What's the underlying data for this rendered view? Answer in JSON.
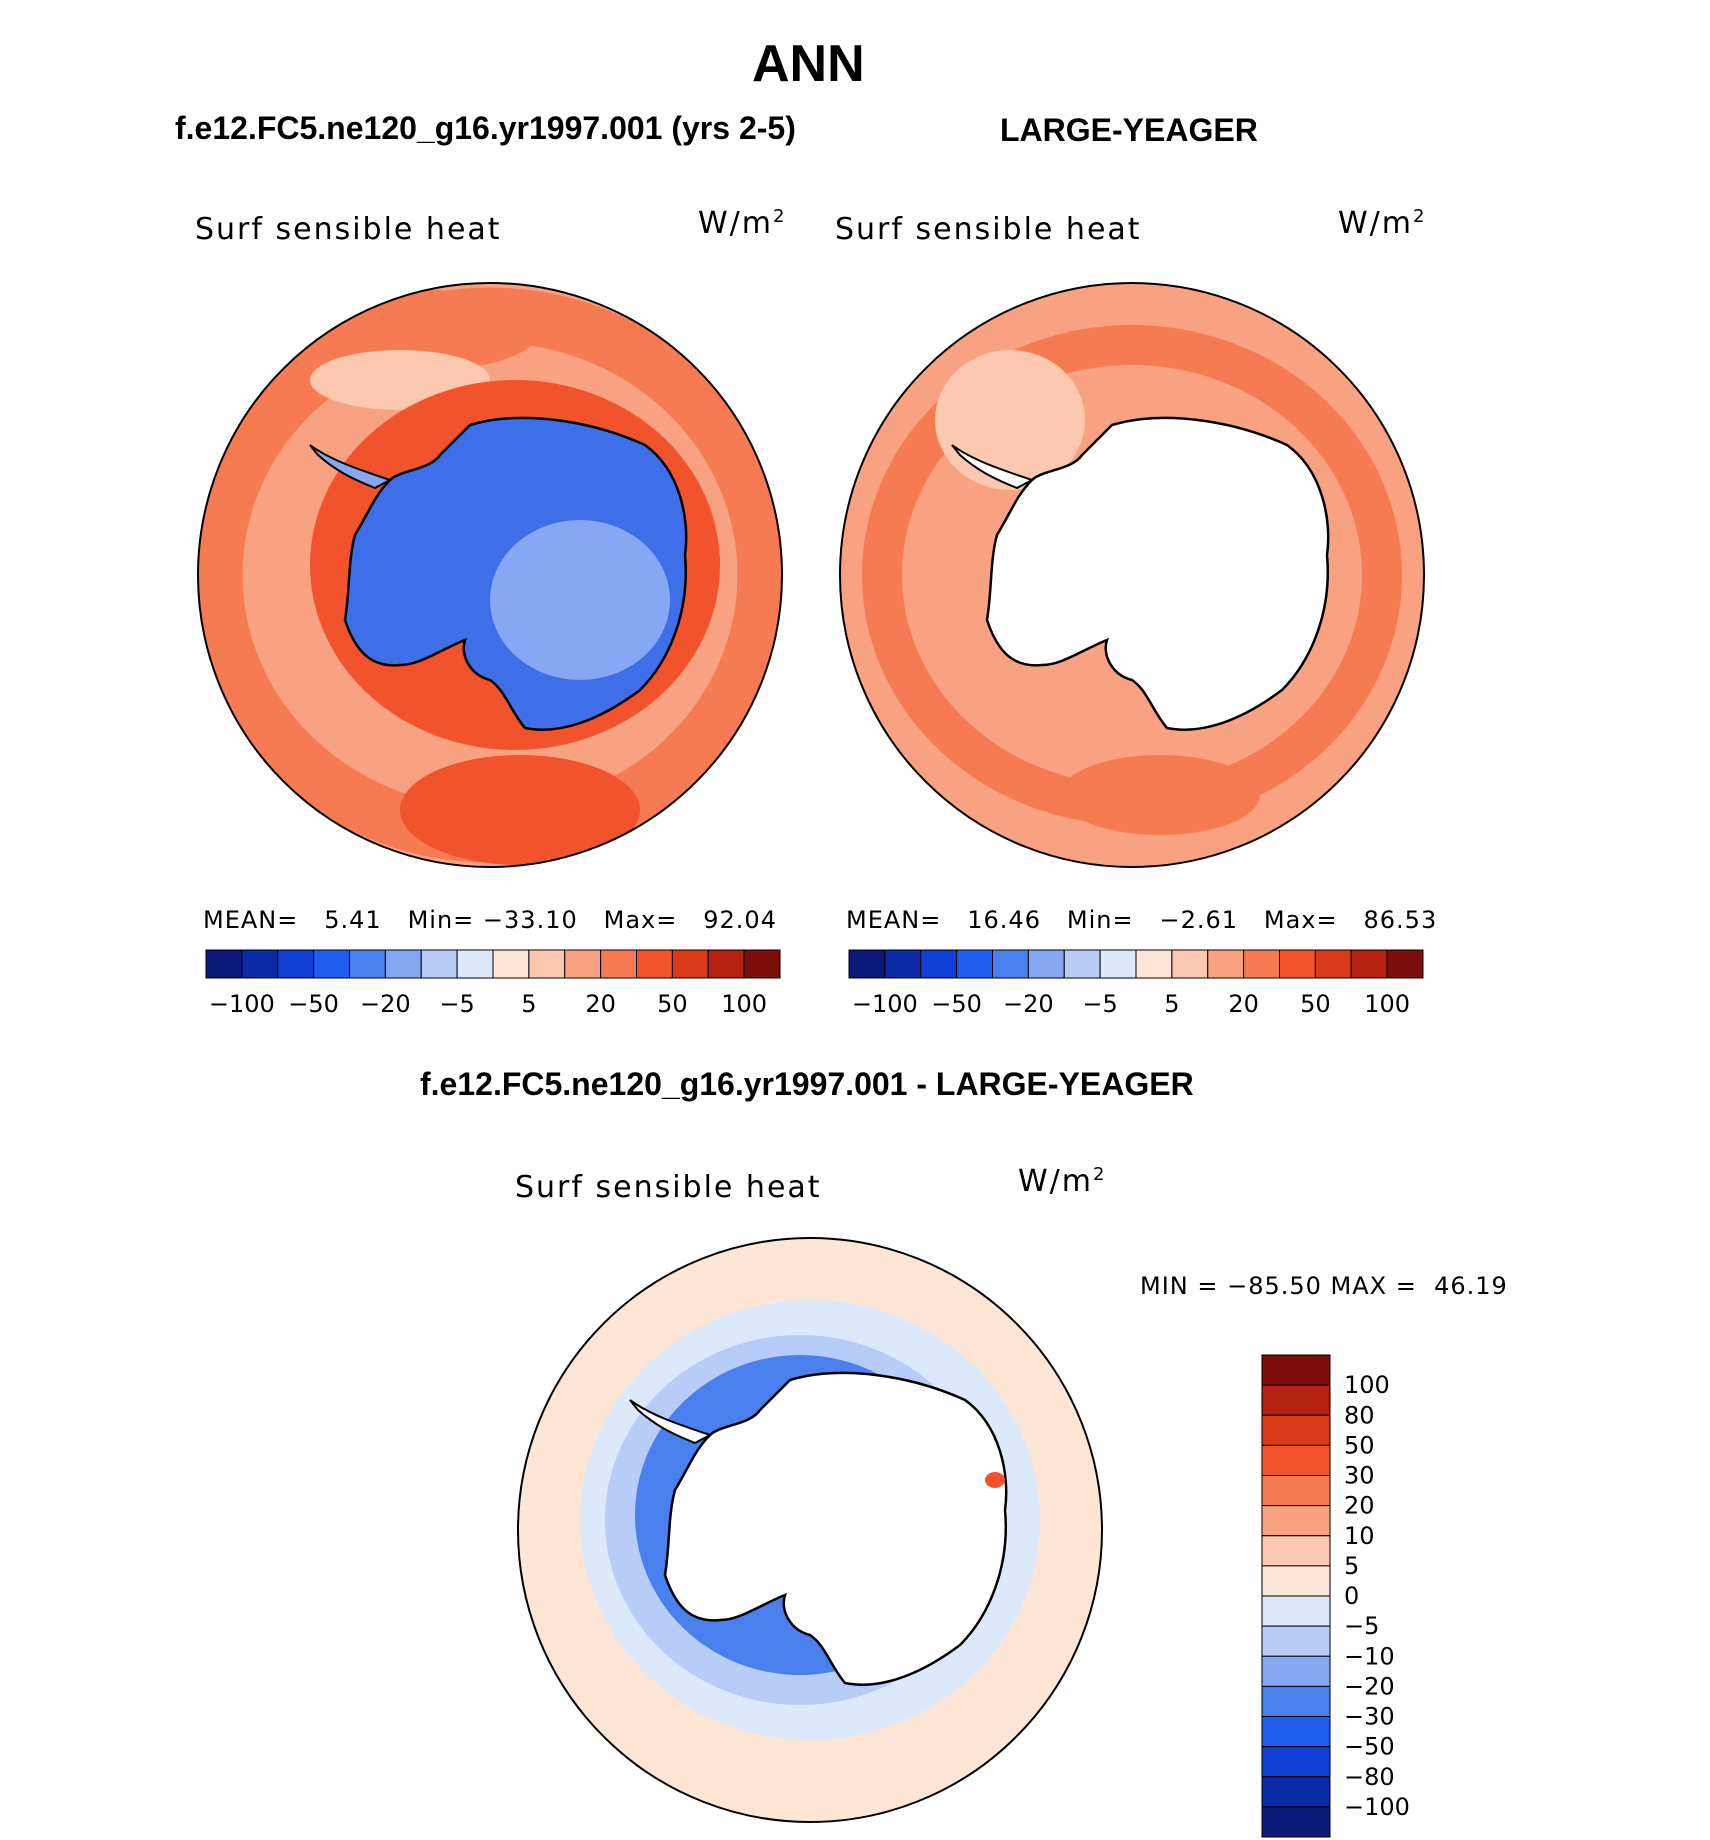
{
  "main_title": "ANN",
  "panels": [
    {
      "case": "f.e12.FC5.ne120_g16.yr1997.001 (yrs 2-5)",
      "field": "Surf sensible heat",
      "units_base": "W/m",
      "units_exp": "2",
      "stats": {
        "mean_label": "MEAN=",
        "mean": "5.41",
        "min_label": "Min=",
        "min": "−33.10",
        "max_label": "Max=",
        "max": "92.04"
      }
    },
    {
      "case": "LARGE-YEAGER",
      "field": "Surf sensible heat",
      "units_base": "W/m",
      "units_exp": "2",
      "stats": {
        "mean_label": "MEAN=",
        "mean": "16.46",
        "min_label": "Min=",
        "min": "−2.61",
        "max_label": "Max=",
        "max": "86.53"
      }
    }
  ],
  "diff": {
    "case": "f.e12.FC5.ne120_g16.yr1997.001 - LARGE-YEAGER",
    "field": "Surf sensible heat",
    "units_base": "W/m",
    "units_exp": "2",
    "minmax": "MIN = −85.50 MAX =  46.19"
  },
  "top_colorbar": {
    "colors": [
      "#0b1a7a",
      "#0a2aa6",
      "#0f3fd4",
      "#1f5ff0",
      "#4a7fee",
      "#86a8f4",
      "#b7cdf8",
      "#dce9fb",
      "#fde6d6",
      "#fcc8b0",
      "#f8a282",
      "#f67a52",
      "#f1532d",
      "#d93a17",
      "#b52110",
      "#7d0d08"
    ],
    "labels": [
      "−100",
      "−50",
      "−20",
      "−5",
      "5",
      "20",
      "50",
      "100"
    ]
  },
  "diff_colorbar": {
    "colors": [
      "#7d0d08",
      "#b52110",
      "#d93a17",
      "#f1532d",
      "#f67a52",
      "#f8a282",
      "#fcc8b0",
      "#fde6d6",
      "#dce9fb",
      "#b7cdf8",
      "#86a8f4",
      "#4a7fee",
      "#1f5ff0",
      "#0f3fd4",
      "#0a2aa6",
      "#0b1a7a"
    ],
    "labels": [
      "100",
      "80",
      "50",
      "30",
      "20",
      "10",
      "5",
      "0",
      "−5",
      "−10",
      "−20",
      "−30",
      "−50",
      "−80",
      "−100"
    ]
  },
  "map_colors": {
    "ocean_warm": "#f8a282",
    "ocean_pale": "#fcc8b0",
    "ocean_hot": "#f1532d",
    "ice_blue": "#4a7fee",
    "ice_light": "#86a8f4",
    "land_white": "#ffffff",
    "diff_bg": "#fde6d6",
    "diff_blue": "#b7cdf8",
    "diff_deep": "#1f5ff0"
  }
}
